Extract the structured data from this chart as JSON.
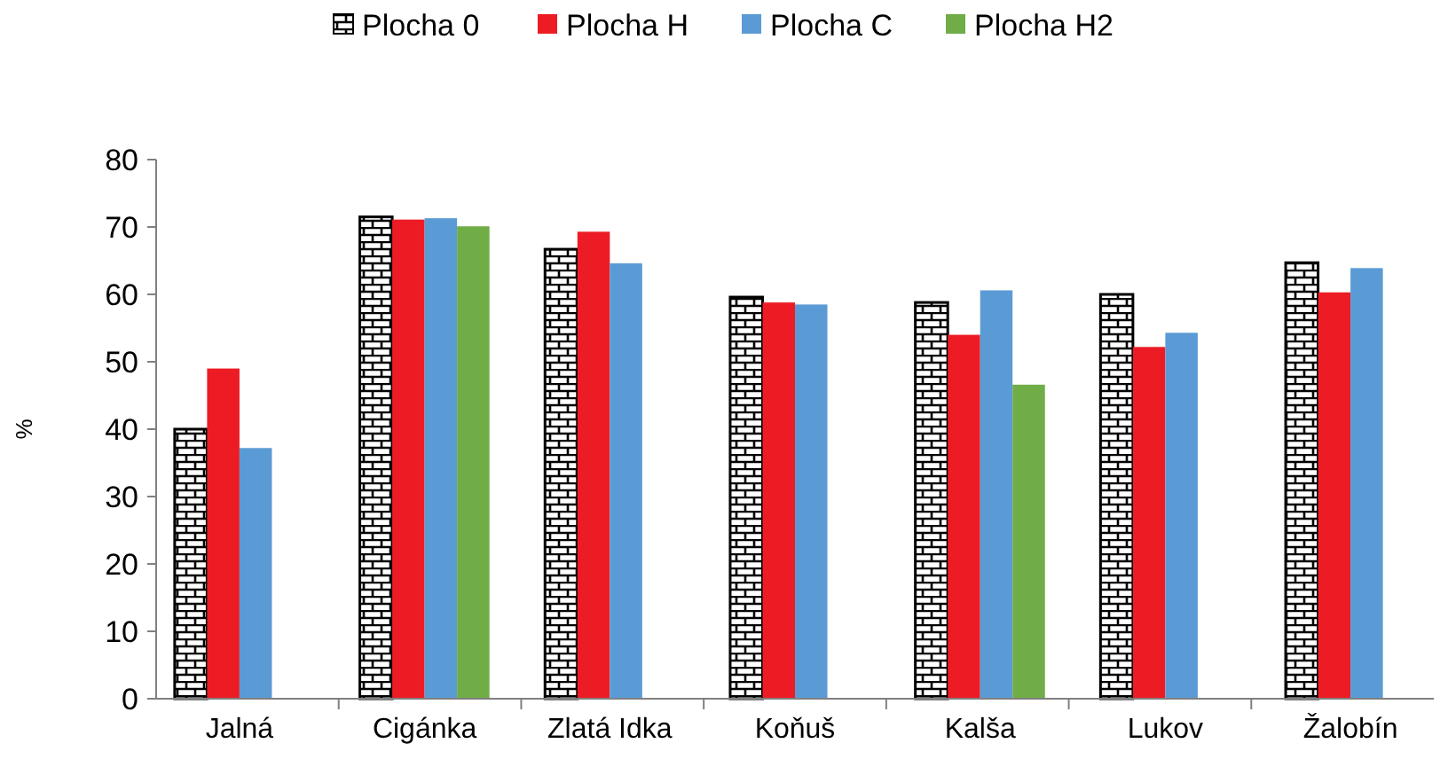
{
  "chart_data": {
    "type": "bar",
    "ylabel": "%",
    "categories": [
      "Jalná",
      "Cigánka",
      "Zlatá Idka",
      "Koňuš",
      "Kalša",
      "Lukov",
      "Žalobín"
    ],
    "series": [
      {
        "name": "Plocha 0",
        "color": "#000000",
        "values": [
          40.0,
          71.5,
          66.7,
          59.6,
          58.8,
          60.0,
          64.7
        ]
      },
      {
        "name": "Plocha H",
        "color": "#ed1c24",
        "values": [
          49.0,
          71.1,
          69.3,
          58.8,
          54.0,
          52.2,
          60.3
        ]
      },
      {
        "name": "Plocha C",
        "color": "#5b9bd5",
        "values": [
          37.2,
          71.3,
          64.6,
          58.5,
          60.6,
          54.3,
          63.9
        ]
      },
      {
        "name": "Plocha H2",
        "color": "#70ad47",
        "values": [
          null,
          70.1,
          null,
          null,
          46.6,
          null,
          null
        ]
      }
    ],
    "ylim": [
      0,
      80
    ],
    "yticks": [
      0,
      10,
      20,
      30,
      40,
      50,
      60,
      70,
      80
    ],
    "grid": false,
    "legend": "top"
  }
}
